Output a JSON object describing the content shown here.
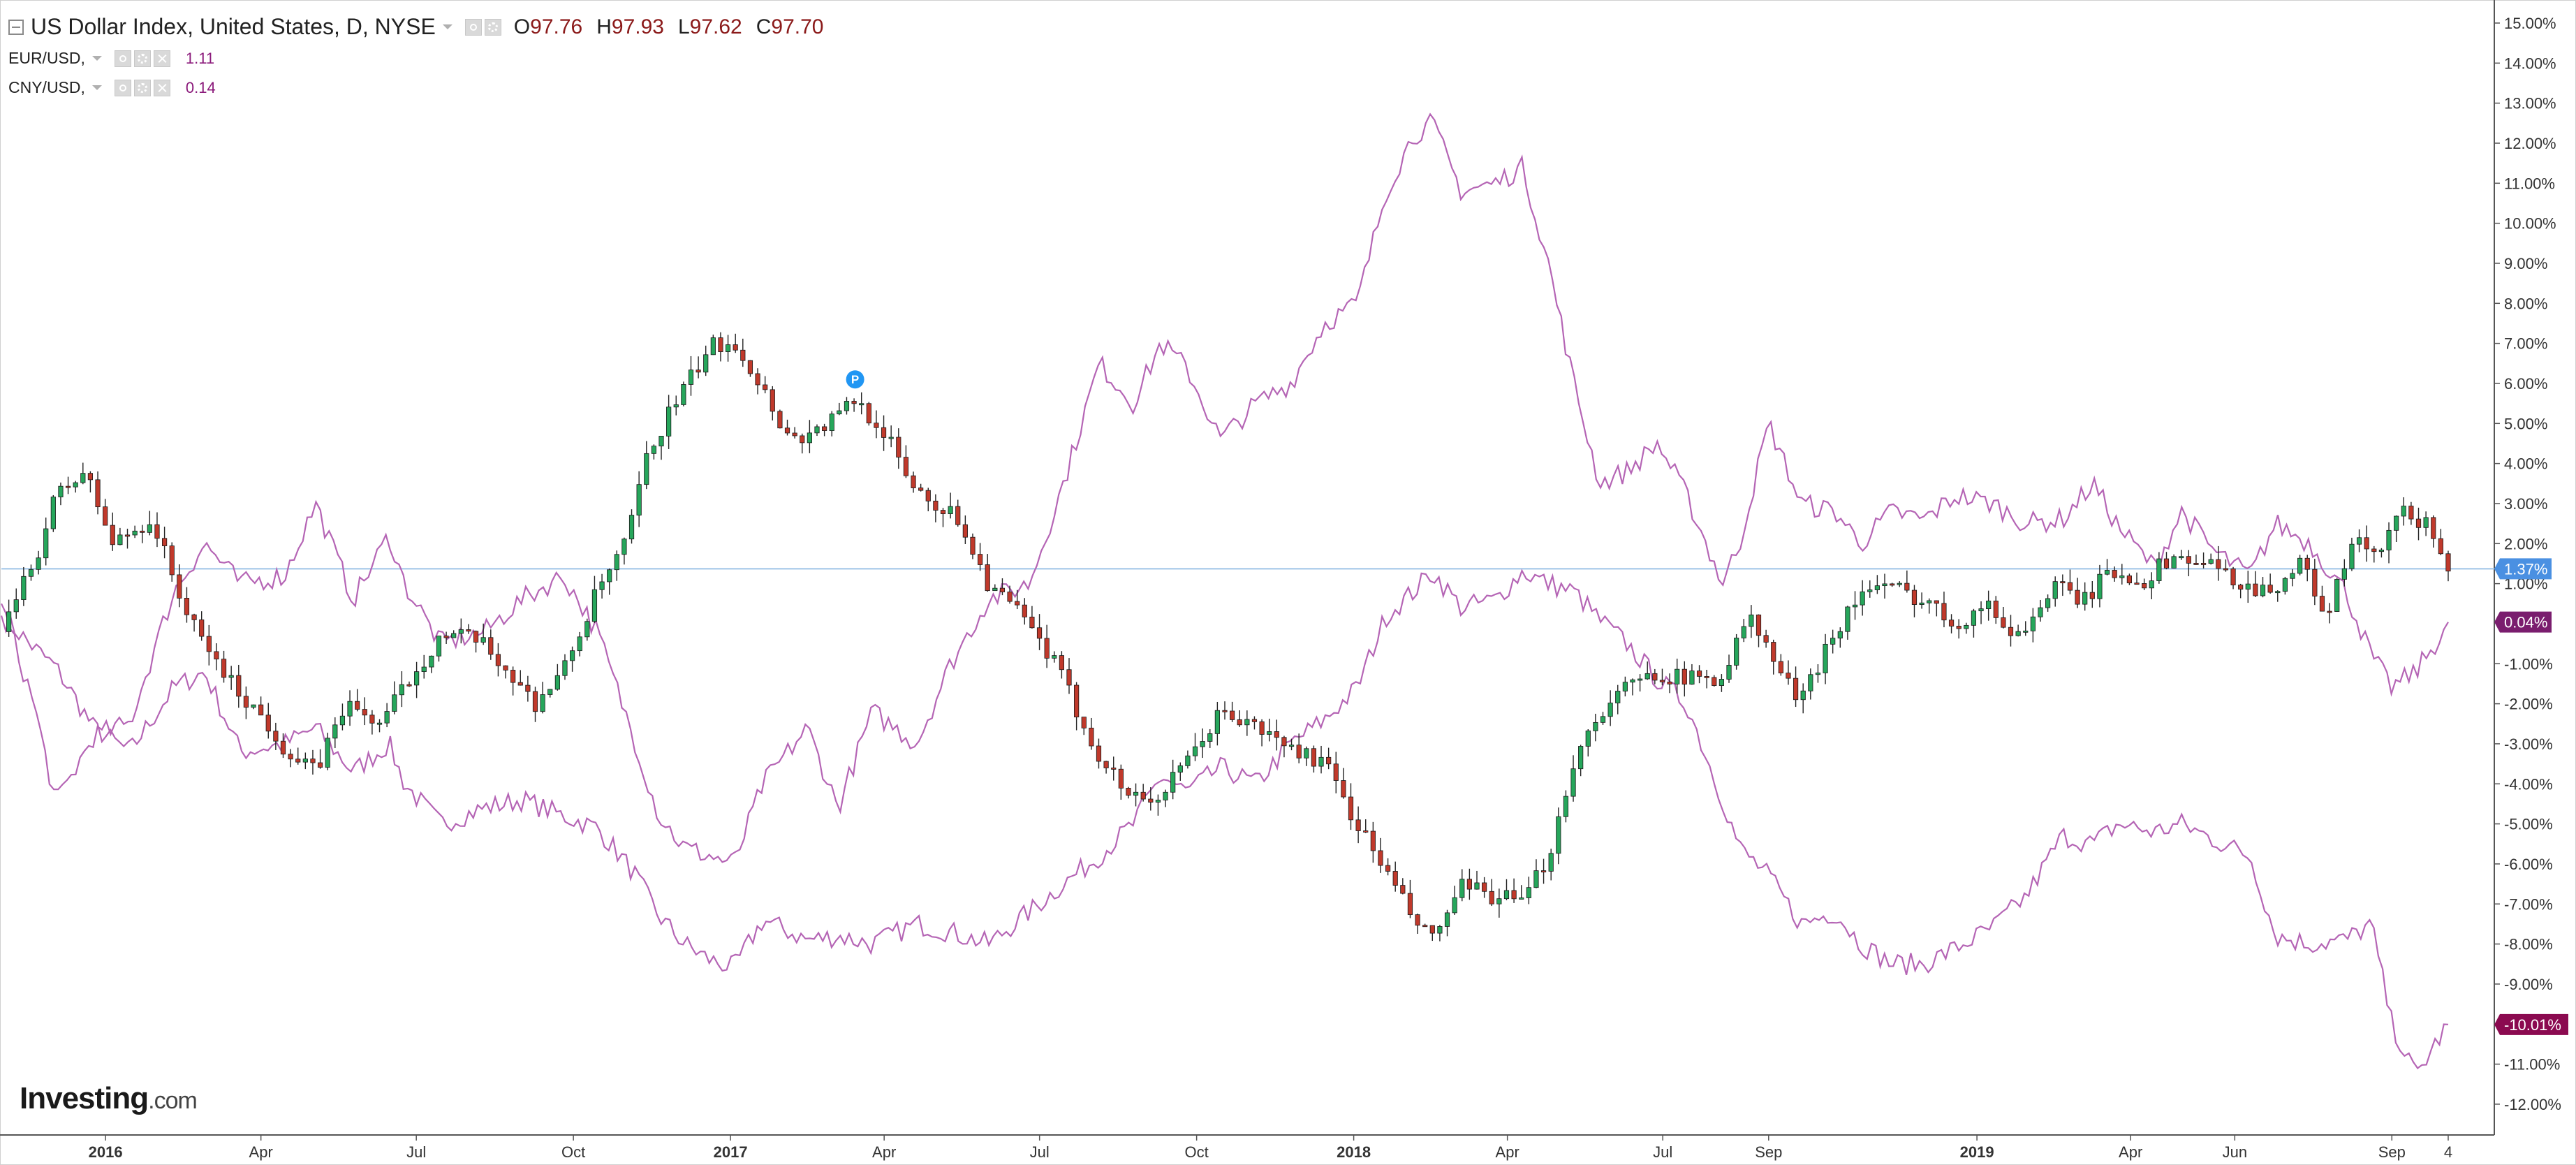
{
  "header": {
    "title": "US Dollar Index, United States, D, NYSE",
    "ohlc": [
      {
        "key": "O",
        "value": "97.76"
      },
      {
        "key": "H",
        "value": "97.93"
      },
      {
        "key": "L",
        "value": "97.62"
      },
      {
        "key": "C",
        "value": "97.70"
      }
    ],
    "studies": [
      {
        "label": "EUR/USD,",
        "value": "1.11"
      },
      {
        "label": "CNY/USD,",
        "value": "0.14"
      }
    ]
  },
  "logo": {
    "brand": "Investing",
    "suffix": ".com"
  },
  "colors": {
    "up_candle": "#26a65b",
    "down_candle": "#c0392b",
    "compare_line": "#b565b5",
    "baseline": "#9ec3e8",
    "badge_dxy": "#4a90e2",
    "badge_eur": "#8b0a50",
    "badge_cny": "#7a1d6e"
  },
  "chart_data": {
    "type": "line",
    "title": "US Dollar Index, United States, D, NYSE",
    "y_axis": {
      "unit": "%",
      "range": [
        -12.5,
        15.5
      ],
      "ticks": [
        "15.00%",
        "14.00%",
        "13.00%",
        "12.00%",
        "11.00%",
        "10.00%",
        "9.00%",
        "8.00%",
        "7.00%",
        "6.00%",
        "5.00%",
        "4.00%",
        "3.00%",
        "2.00%",
        "1.00%",
        "-1.00%",
        "-2.00%",
        "-3.00%",
        "-4.00%",
        "-5.00%",
        "-6.00%",
        "-7.00%",
        "-8.00%",
        "-9.00%",
        "-10.00%",
        "-11.00%",
        "-12.00%"
      ],
      "side": "right"
    },
    "x_axis": {
      "range": [
        "2015-11-01",
        "2019-10-31"
      ],
      "ticks": [
        {
          "label": "2016",
          "date": "2016-01-01",
          "bold": true
        },
        {
          "label": "Apr",
          "date": "2016-04-01"
        },
        {
          "label": "Jul",
          "date": "2016-07-01"
        },
        {
          "label": "Oct",
          "date": "2016-10-01"
        },
        {
          "label": "2017",
          "date": "2017-01-01",
          "bold": true
        },
        {
          "label": "Apr",
          "date": "2017-04-01"
        },
        {
          "label": "Jul",
          "date": "2017-07-01"
        },
        {
          "label": "Oct",
          "date": "2017-10-01"
        },
        {
          "label": "2018",
          "date": "2018-01-01",
          "bold": true
        },
        {
          "label": "Apr",
          "date": "2018-04-01"
        },
        {
          "label": "Jul",
          "date": "2018-07-01"
        },
        {
          "label": "Sep",
          "date": "2018-09-01"
        },
        {
          "label": "2019",
          "date": "2019-01-01",
          "bold": true
        },
        {
          "label": "Apr",
          "date": "2019-04-01"
        },
        {
          "label": "Jun",
          "date": "2019-06-01"
        },
        {
          "label": "Sep",
          "date": "2019-09-01"
        },
        {
          "label": "4",
          "date": "2019-10-04"
        }
      ]
    },
    "baseline_value": 1.37,
    "series": [
      {
        "name": "US Dollar Index",
        "style": "candlestick",
        "last_value_label": "1.37%",
        "x": [
          "2015-11-01",
          "2015-11-20",
          "2015-12-03",
          "2015-12-20",
          "2016-01-05",
          "2016-01-28",
          "2016-02-20",
          "2016-03-15",
          "2016-04-05",
          "2016-04-20",
          "2016-05-03",
          "2016-05-20",
          "2016-06-10",
          "2016-06-25",
          "2016-07-15",
          "2016-08-05",
          "2016-08-20",
          "2016-09-08",
          "2016-09-25",
          "2016-10-15",
          "2016-11-01",
          "2016-11-12",
          "2016-11-25",
          "2016-12-10",
          "2016-12-20",
          "2017-01-03",
          "2017-01-18",
          "2017-02-05",
          "2017-02-20",
          "2017-03-05",
          "2017-03-15",
          "2017-04-01",
          "2017-04-15",
          "2017-05-01",
          "2017-05-15",
          "2017-06-01",
          "2017-06-20",
          "2017-07-10",
          "2017-08-01",
          "2017-08-20",
          "2017-09-08",
          "2017-09-25",
          "2017-10-15",
          "2017-11-05",
          "2017-11-25",
          "2017-12-15",
          "2018-01-03",
          "2018-01-20",
          "2018-02-05",
          "2018-02-16",
          "2018-03-05",
          "2018-03-25",
          "2018-04-10",
          "2018-04-25",
          "2018-05-10",
          "2018-05-25",
          "2018-06-10",
          "2018-06-28",
          "2018-07-15",
          "2018-08-05",
          "2018-08-20",
          "2018-09-05",
          "2018-09-20",
          "2018-10-05",
          "2018-10-25",
          "2018-11-12",
          "2018-12-01",
          "2018-12-20",
          "2019-01-05",
          "2019-01-25",
          "2019-02-15",
          "2019-03-05",
          "2019-03-20",
          "2019-04-10",
          "2019-04-25",
          "2019-05-15",
          "2019-06-01",
          "2019-06-20",
          "2019-07-10",
          "2019-07-25",
          "2019-08-10",
          "2019-08-25",
          "2019-09-05",
          "2019-09-20",
          "2019-09-28",
          "2019-10-04"
        ],
        "values": [
          -0.2,
          1.5,
          3.2,
          3.8,
          2.0,
          2.6,
          0.0,
          -1.5,
          -2.5,
          -3.4,
          -3.7,
          -2.0,
          -2.5,
          -1.5,
          -0.3,
          -0.4,
          -1.0,
          -2.0,
          -1.2,
          0.8,
          2.0,
          4.0,
          5.2,
          6.2,
          6.9,
          7.1,
          6.0,
          4.6,
          4.8,
          5.2,
          5.6,
          4.8,
          3.6,
          3.0,
          2.6,
          1.0,
          0.2,
          -1.0,
          -3.0,
          -4.2,
          -4.4,
          -3.5,
          -2.2,
          -2.6,
          -3.1,
          -3.5,
          -5.0,
          -6.2,
          -7.4,
          -7.9,
          -6.6,
          -6.8,
          -7.0,
          -5.8,
          -3.4,
          -2.2,
          -1.6,
          -1.2,
          -1.4,
          -1.3,
          0.2,
          -1.0,
          -2.0,
          -0.5,
          0.8,
          0.9,
          0.6,
          0.0,
          0.5,
          -0.3,
          0.9,
          0.6,
          1.3,
          1.1,
          1.7,
          1.5,
          1.1,
          0.8,
          1.5,
          0.2,
          2.1,
          1.6,
          2.8,
          2.5,
          2.1,
          1.37
        ]
      },
      {
        "name": "EUR/USD",
        "style": "line",
        "last_value_label": "-10.01%",
        "x": [
          "2015-11-01",
          "2015-11-20",
          "2015-12-03",
          "2015-12-25",
          "2016-01-15",
          "2016-02-10",
          "2016-02-28",
          "2016-03-20",
          "2016-04-15",
          "2016-05-03",
          "2016-05-25",
          "2016-06-15",
          "2016-06-24",
          "2016-07-15",
          "2016-08-10",
          "2016-09-01",
          "2016-09-25",
          "2016-10-15",
          "2016-11-05",
          "2016-11-20",
          "2016-12-05",
          "2016-12-20",
          "2017-01-03",
          "2017-01-20",
          "2017-02-15",
          "2017-03-05",
          "2017-03-25",
          "2017-04-20",
          "2017-05-10",
          "2017-06-01",
          "2017-06-25",
          "2017-07-15",
          "2017-08-05",
          "2017-08-25",
          "2017-09-10",
          "2017-09-25",
          "2017-10-15",
          "2017-11-05",
          "2017-11-25",
          "2017-12-15",
          "2018-01-03",
          "2018-01-20",
          "2018-02-05",
          "2018-02-16",
          "2018-03-05",
          "2018-03-25",
          "2018-04-10",
          "2018-04-25",
          "2018-05-10",
          "2018-05-25",
          "2018-06-10",
          "2018-06-28",
          "2018-07-15",
          "2018-08-05",
          "2018-08-15",
          "2018-09-01",
          "2018-09-20",
          "2018-10-10",
          "2018-10-25",
          "2018-11-12",
          "2018-12-01",
          "2018-12-20",
          "2019-01-10",
          "2019-01-30",
          "2019-02-20",
          "2019-03-10",
          "2019-03-25",
          "2019-04-15",
          "2019-05-01",
          "2019-05-20",
          "2019-06-10",
          "2019-06-25",
          "2019-07-15",
          "2019-08-05",
          "2019-08-20",
          "2019-09-01",
          "2019-09-15",
          "2019-09-28",
          "2019-10-04"
        ],
        "values": [
          0.2,
          -0.6,
          -1.1,
          -2.6,
          -3.2,
          -1.6,
          -1.2,
          -3.2,
          -3.0,
          -2.6,
          -3.7,
          -3.0,
          -4.0,
          -5.0,
          -4.6,
          -4.4,
          -4.8,
          -5.1,
          -6.2,
          -7.3,
          -8.0,
          -8.4,
          -8.6,
          -7.4,
          -7.9,
          -7.8,
          -8.0,
          -7.5,
          -7.7,
          -8.0,
          -7.2,
          -6.5,
          -5.8,
          -5.0,
          -3.8,
          -4.2,
          -3.6,
          -4.0,
          -3.0,
          -2.4,
          -1.6,
          0.2,
          0.8,
          1.3,
          0.4,
          0.6,
          1.3,
          1.0,
          0.8,
          0.1,
          -0.5,
          -1.4,
          -2.0,
          -4.4,
          -5.6,
          -6.3,
          -7.5,
          -7.2,
          -8.0,
          -8.5,
          -8.5,
          -8.1,
          -7.6,
          -6.8,
          -5.3,
          -5.5,
          -5.0,
          -5.2,
          -5.0,
          -5.4,
          -5.8,
          -7.8,
          -8.0,
          -7.9,
          -7.5,
          -10.0,
          -11.3,
          -10.4,
          -10.01
        ]
      },
      {
        "name": "CNY/USD",
        "style": "line",
        "last_value_label": "0.04%",
        "x": [
          "2015-11-01",
          "2015-11-20",
          "2015-12-03",
          "2015-12-25",
          "2016-01-15",
          "2016-02-10",
          "2016-02-28",
          "2016-03-20",
          "2016-04-15",
          "2016-05-03",
          "2016-05-25",
          "2016-06-15",
          "2016-06-24",
          "2016-07-15",
          "2016-08-10",
          "2016-09-01",
          "2016-09-25",
          "2016-10-15",
          "2016-11-05",
          "2016-11-20",
          "2016-12-05",
          "2016-12-20",
          "2017-01-03",
          "2017-01-20",
          "2017-02-15",
          "2017-03-05",
          "2017-03-25",
          "2017-04-20",
          "2017-05-10",
          "2017-06-01",
          "2017-06-25",
          "2017-07-15",
          "2017-08-05",
          "2017-08-25",
          "2017-09-10",
          "2017-09-25",
          "2017-10-15",
          "2017-11-05",
          "2017-11-25",
          "2017-12-15",
          "2018-01-03",
          "2018-01-20",
          "2018-02-05",
          "2018-02-16",
          "2018-03-05",
          "2018-03-25",
          "2018-04-10",
          "2018-04-25",
          "2018-05-10",
          "2018-05-25",
          "2018-06-10",
          "2018-06-28",
          "2018-07-15",
          "2018-08-05",
          "2018-08-15",
          "2018-09-01",
          "2018-09-20",
          "2018-10-10",
          "2018-10-25",
          "2018-11-12",
          "2018-12-01",
          "2018-12-20",
          "2019-01-10",
          "2019-01-30",
          "2019-02-20",
          "2019-03-10",
          "2019-03-25",
          "2019-04-15",
          "2019-05-01",
          "2019-05-20",
          "2019-06-10",
          "2019-06-25",
          "2019-07-15",
          "2019-08-05",
          "2019-08-20",
          "2019-09-01",
          "2019-09-15",
          "2019-09-28",
          "2019-10-04"
        ],
        "values": [
          0.5,
          -2.0,
          -4.5,
          -2.8,
          -2.5,
          0.8,
          2.0,
          1.0,
          1.2,
          3.0,
          0.6,
          2.2,
          1.0,
          -0.5,
          -0.2,
          0.6,
          1.2,
          -0.2,
          -2.8,
          -4.8,
          -5.6,
          -5.8,
          -6.0,
          -4.0,
          -2.6,
          -4.6,
          -2.2,
          -3.0,
          -1.0,
          0.6,
          1.0,
          3.5,
          6.5,
          5.5,
          7.0,
          6.4,
          4.6,
          5.5,
          6.0,
          7.5,
          8.0,
          10.8,
          12.2,
          12.5,
          10.8,
          11.0,
          11.4,
          9.0,
          6.0,
          3.5,
          3.8,
          4.5,
          3.2,
          1.0,
          2.0,
          5.0,
          3.0,
          2.8,
          2.0,
          2.8,
          2.6,
          3.2,
          3.0,
          2.5,
          2.6,
          3.5,
          2.4,
          1.4,
          2.8,
          1.8,
          1.2,
          2.5,
          2.0,
          0.8,
          -0.8,
          -1.6,
          -1.2,
          -0.4,
          0.04
        ]
      }
    ],
    "marker": {
      "label": "P",
      "date": "2017-03-15",
      "value": 6.1
    },
    "grid": false,
    "legend": "top-left"
  }
}
